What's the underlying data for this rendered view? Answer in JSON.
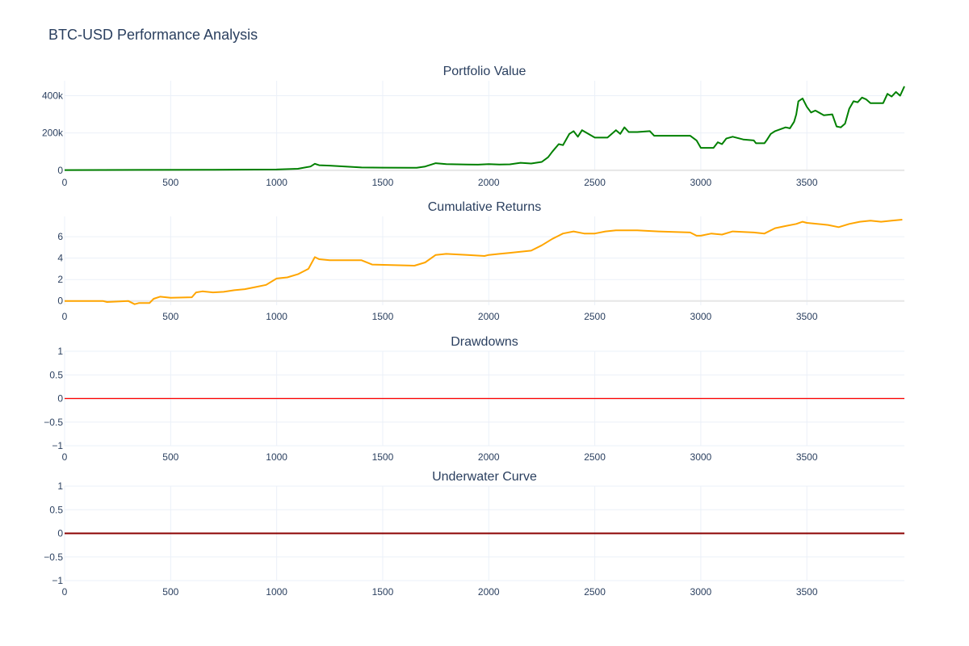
{
  "title": "BTC-USD Performance Analysis",
  "colors": {
    "grid": "#ebf0f8",
    "axis_text": "#2a3f5f",
    "zeroline": "#e6e6e6",
    "portfolio": "#008000",
    "returns": "#ffa500",
    "drawdowns": "#ff0000",
    "underwater": "#8b0000"
  },
  "chart_data": [
    {
      "type": "line",
      "title": "Portfolio Value",
      "xlim": [
        0,
        3960
      ],
      "ylim": [
        -5000,
        480000
      ],
      "x_ticks": [
        0,
        500,
        1000,
        1500,
        2000,
        2500,
        3000,
        3500
      ],
      "x_tick_labels": [
        "0",
        "500",
        "1000",
        "1500",
        "2000",
        "2500",
        "3000",
        "3500"
      ],
      "y_ticks": [
        0,
        200000,
        400000
      ],
      "y_tick_labels": [
        "0",
        "200k",
        "400k"
      ],
      "grid": true,
      "series": [
        {
          "color": "#008000",
          "x": [
            0,
            350,
            700,
            1000,
            1100,
            1160,
            1180,
            1200,
            1250,
            1400,
            1500,
            1660,
            1700,
            1750,
            1800,
            1900,
            1950,
            2000,
            2050,
            2100,
            2150,
            2200,
            2250,
            2280,
            2300,
            2330,
            2350,
            2380,
            2400,
            2420,
            2440,
            2500,
            2560,
            2600,
            2620,
            2640,
            2660,
            2700,
            2760,
            2780,
            2950,
            2980,
            3000,
            3060,
            3080,
            3100,
            3120,
            3150,
            3200,
            3250,
            3260,
            3300,
            3310,
            3330,
            3350,
            3400,
            3420,
            3440,
            3450,
            3460,
            3480,
            3500,
            3520,
            3540,
            3580,
            3620,
            3640,
            3660,
            3680,
            3700,
            3720,
            3740,
            3760,
            3780,
            3800,
            3850,
            3860,
            3880,
            3900,
            3920,
            3940,
            3960
          ],
          "y": [
            1000,
            2000,
            3000,
            4000,
            8000,
            20000,
            35000,
            27000,
            25000,
            15000,
            14000,
            13000,
            20000,
            38000,
            33000,
            31000,
            30000,
            33000,
            31000,
            32000,
            40000,
            36000,
            45000,
            70000,
            100000,
            140000,
            135000,
            195000,
            210000,
            180000,
            215000,
            175000,
            175000,
            215000,
            195000,
            230000,
            205000,
            205000,
            210000,
            185000,
            185000,
            160000,
            120000,
            120000,
            150000,
            140000,
            170000,
            180000,
            165000,
            160000,
            145000,
            145000,
            160000,
            195000,
            210000,
            230000,
            225000,
            260000,
            300000,
            370000,
            385000,
            340000,
            310000,
            320000,
            295000,
            300000,
            235000,
            230000,
            250000,
            330000,
            370000,
            365000,
            390000,
            380000,
            360000,
            360000,
            360000,
            410000,
            395000,
            420000,
            400000,
            450000
          ]
        }
      ]
    },
    {
      "type": "line",
      "title": "Cumulative Returns",
      "xlim": [
        0,
        3960
      ],
      "ylim": [
        -0.4,
        7.9
      ],
      "x_ticks": [
        0,
        500,
        1000,
        1500,
        2000,
        2500,
        3000,
        3500
      ],
      "x_tick_labels": [
        "0",
        "500",
        "1000",
        "1500",
        "2000",
        "2500",
        "3000",
        "3500"
      ],
      "y_ticks": [
        0,
        2,
        4,
        6
      ],
      "y_tick_labels": [
        "0",
        "2",
        "4",
        "6"
      ],
      "grid": true,
      "series": [
        {
          "color": "#ffa500",
          "x": [
            0,
            180,
            200,
            300,
            330,
            350,
            400,
            420,
            450,
            500,
            600,
            620,
            650,
            700,
            750,
            800,
            850,
            900,
            950,
            1000,
            1050,
            1100,
            1150,
            1180,
            1200,
            1250,
            1400,
            1450,
            1650,
            1700,
            1750,
            1800,
            1900,
            1980,
            2000,
            2050,
            2100,
            2200,
            2250,
            2300,
            2330,
            2350,
            2400,
            2450,
            2500,
            2550,
            2600,
            2700,
            2800,
            2950,
            2980,
            3000,
            3050,
            3100,
            3150,
            3250,
            3300,
            3350,
            3400,
            3450,
            3480,
            3500,
            3600,
            3650,
            3700,
            3750,
            3800,
            3850,
            3900,
            3950
          ],
          "y": [
            0,
            0,
            -0.1,
            0,
            -0.3,
            -0.2,
            -0.2,
            0.2,
            0.4,
            0.3,
            0.35,
            0.8,
            0.9,
            0.8,
            0.85,
            1.0,
            1.1,
            1.3,
            1.5,
            2.1,
            2.2,
            2.5,
            3.0,
            4.1,
            3.9,
            3.8,
            3.8,
            3.4,
            3.3,
            3.6,
            4.3,
            4.4,
            4.3,
            4.2,
            4.3,
            4.4,
            4.5,
            4.7,
            5.2,
            5.8,
            6.1,
            6.3,
            6.5,
            6.3,
            6.3,
            6.5,
            6.6,
            6.6,
            6.5,
            6.4,
            6.1,
            6.1,
            6.3,
            6.2,
            6.5,
            6.4,
            6.3,
            6.8,
            7.0,
            7.2,
            7.4,
            7.3,
            7.1,
            6.9,
            7.2,
            7.4,
            7.5,
            7.4,
            7.5,
            7.6
          ]
        }
      ]
    },
    {
      "type": "line",
      "title": "Drawdowns",
      "xlim": [
        0,
        3960
      ],
      "ylim": [
        -1,
        1
      ],
      "x_ticks": [
        0,
        500,
        1000,
        1500,
        2000,
        2500,
        3000,
        3500
      ],
      "x_tick_labels": [
        "0",
        "500",
        "1000",
        "1500",
        "2000",
        "2500",
        "3000",
        "3500"
      ],
      "y_ticks": [
        -1,
        -0.5,
        0,
        0.5,
        1
      ],
      "y_tick_labels": [
        "−1",
        "−0.5",
        "0",
        "0.5",
        "1"
      ],
      "grid": true,
      "series": [
        {
          "color": "#ff0000",
          "x": [
            0,
            3960
          ],
          "y": [
            0,
            0
          ]
        }
      ]
    },
    {
      "type": "line",
      "title": "Underwater Curve",
      "xlim": [
        0,
        3960
      ],
      "ylim": [
        -1,
        1
      ],
      "x_ticks": [
        0,
        500,
        1000,
        1500,
        2000,
        2500,
        3000,
        3500
      ],
      "x_tick_labels": [
        "0",
        "500",
        "1000",
        "1500",
        "2000",
        "2500",
        "3000",
        "3500"
      ],
      "y_ticks": [
        -1,
        -0.5,
        0,
        0.5,
        1
      ],
      "y_tick_labels": [
        "−1",
        "−0.5",
        "0",
        "0.5",
        "1"
      ],
      "grid": true,
      "series": [
        {
          "color": "#8b0000",
          "x": [
            0,
            3960
          ],
          "y": [
            0,
            0
          ]
        }
      ]
    }
  ]
}
